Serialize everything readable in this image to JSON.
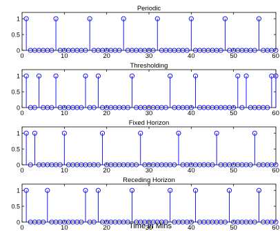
{
  "chart_data": [
    {
      "type": "stem",
      "title": "Periodic",
      "xlabel": "",
      "ylabel": "",
      "xlim": [
        0,
        60
      ],
      "ylim": [
        0,
        1.2
      ],
      "x_ticks": [
        0,
        10,
        20,
        30,
        40,
        50,
        60
      ],
      "x_tick_labels": [
        "0",
        "10",
        "20",
        "30",
        "40",
        "50",
        "60"
      ],
      "y_ticks": [
        0,
        0.5,
        1
      ],
      "y_tick_labels": [
        "0",
        "0.5",
        "1"
      ],
      "x": [
        1,
        2,
        3,
        4,
        5,
        6,
        7,
        8,
        9,
        10,
        11,
        12,
        13,
        14,
        15,
        16,
        17,
        18,
        19,
        20,
        21,
        22,
        23,
        24,
        25,
        26,
        27,
        28,
        29,
        30,
        31,
        32,
        33,
        34,
        35,
        36,
        37,
        38,
        39,
        40,
        41,
        42,
        43,
        44,
        45,
        46,
        47,
        48,
        49,
        50,
        51,
        52,
        53,
        54,
        55,
        56,
        57,
        58,
        59,
        60
      ],
      "ones": [
        1,
        8,
        16,
        24,
        32,
        40,
        48,
        56
      ],
      "color": "#0000ff",
      "grid": false
    },
    {
      "type": "stem",
      "title": "Thresholding",
      "xlabel": "",
      "ylabel": "",
      "xlim": [
        0,
        60
      ],
      "ylim": [
        0,
        1.2
      ],
      "x_ticks": [
        0,
        10,
        20,
        30,
        40,
        50,
        60
      ],
      "x_tick_labels": [
        "0",
        "10",
        "20",
        "30",
        "40",
        "50",
        "60"
      ],
      "y_ticks": [
        0,
        0.5,
        1
      ],
      "y_tick_labels": [
        "0",
        "0.5",
        "1"
      ],
      "x": [
        1,
        2,
        3,
        4,
        5,
        6,
        7,
        8,
        9,
        10,
        11,
        12,
        13,
        14,
        15,
        16,
        17,
        18,
        19,
        20,
        21,
        22,
        23,
        24,
        25,
        26,
        27,
        28,
        29,
        30,
        31,
        32,
        33,
        34,
        35,
        36,
        37,
        38,
        39,
        40,
        41,
        42,
        43,
        44,
        45,
        46,
        47,
        48,
        49,
        50,
        51,
        52,
        53,
        54,
        55,
        56,
        57,
        58,
        59,
        60
      ],
      "ones": [
        1,
        4,
        8,
        15,
        18,
        26,
        35,
        41,
        51,
        53,
        59,
        60
      ],
      "color": "#0000ff",
      "grid": false
    },
    {
      "type": "stem",
      "title": "Fixed Horizon",
      "xlabel": "",
      "ylabel": "",
      "xlim": [
        0,
        60
      ],
      "ylim": [
        0,
        1.2
      ],
      "x_ticks": [
        0,
        10,
        20,
        30,
        40,
        50,
        60
      ],
      "x_tick_labels": [
        "0",
        "10",
        "20",
        "30",
        "40",
        "50",
        "60"
      ],
      "y_ticks": [
        0,
        0.5,
        1
      ],
      "y_tick_labels": [
        "0",
        "0.5",
        "1"
      ],
      "x": [
        1,
        2,
        3,
        4,
        5,
        6,
        7,
        8,
        9,
        10,
        11,
        12,
        13,
        14,
        15,
        16,
        17,
        18,
        19,
        20,
        21,
        22,
        23,
        24,
        25,
        26,
        27,
        28,
        29,
        30,
        31,
        32,
        33,
        34,
        35,
        36,
        37,
        38,
        39,
        40,
        41,
        42,
        43,
        44,
        45,
        46,
        47,
        48,
        49,
        50,
        51,
        52,
        53,
        54,
        55,
        56,
        57,
        58,
        59,
        60
      ],
      "ones": [
        1,
        3,
        10,
        19,
        28,
        37,
        46,
        55
      ],
      "color": "#0000ff",
      "grid": false
    },
    {
      "type": "stem",
      "title": "Receding Horizon",
      "xlabel": "Time in Mins",
      "ylabel": "",
      "xlim": [
        0,
        60
      ],
      "ylim": [
        0,
        1.2
      ],
      "x_ticks": [
        0,
        10,
        20,
        30,
        40,
        50,
        60
      ],
      "x_tick_labels": [
        "0",
        "10",
        "20",
        "30",
        "40",
        "50",
        "60"
      ],
      "y_ticks": [
        0,
        0.5,
        1
      ],
      "y_tick_labels": [
        "0",
        "0.5",
        "1"
      ],
      "x": [
        1,
        2,
        3,
        4,
        5,
        6,
        7,
        8,
        9,
        10,
        11,
        12,
        13,
        14,
        15,
        16,
        17,
        18,
        19,
        20,
        21,
        22,
        23,
        24,
        25,
        26,
        27,
        28,
        29,
        30,
        31,
        32,
        33,
        34,
        35,
        36,
        37,
        38,
        39,
        40,
        41,
        42,
        43,
        44,
        45,
        46,
        47,
        48,
        49,
        50,
        51,
        52,
        53,
        54,
        55,
        56,
        57,
        58,
        59,
        60
      ],
      "ones": [
        1,
        6,
        15,
        18,
        26,
        35,
        41,
        49,
        56
      ],
      "color": "#0000ff",
      "grid": false
    }
  ]
}
